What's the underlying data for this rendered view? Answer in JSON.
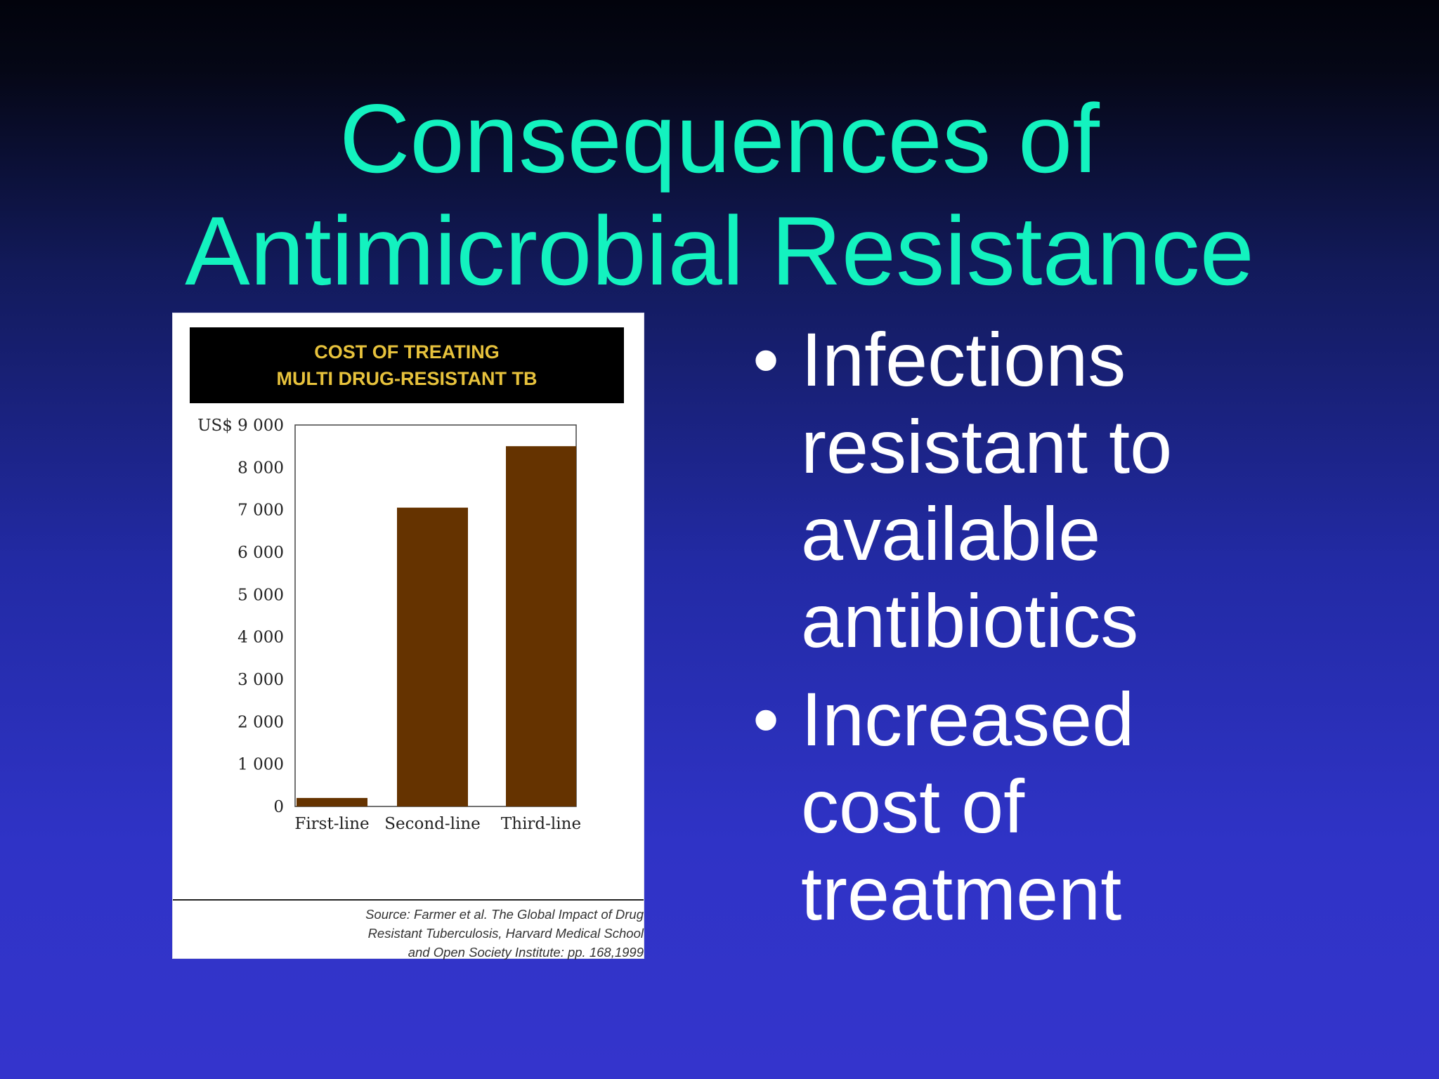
{
  "slide": {
    "title_lines": [
      "Consequences of",
      "Antimicrobial Resistance"
    ],
    "bullets": [
      {
        "lines": [
          "Infections",
          "resistant to",
          "available",
          "antibiotics"
        ]
      },
      {
        "lines": [
          "Increased",
          "cost of",
          "treatment"
        ]
      }
    ],
    "bullet_symbol": "•"
  },
  "panel": {
    "header_lines": [
      "COST OF TREATING",
      "MULTI DRUG-RESISTANT TB"
    ],
    "source_lines": [
      "Source: Farmer et al. The Global Impact of Drug",
      "Resistant Tuberculosis, Harvard Medical School",
      "and Open Society Institute: pp. 168,1999"
    ]
  },
  "chart_data": {
    "type": "bar",
    "title": "COST OF TREATING MULTI DRUG-RESISTANT TB",
    "categories": [
      "First-line",
      "Second-line",
      "Third-line"
    ],
    "values": [
      200,
      7050,
      8500
    ],
    "ylim": [
      0,
      9000
    ],
    "yticks": [
      {
        "value": 0,
        "label": "0"
      },
      {
        "value": 1000,
        "label": "1 000"
      },
      {
        "value": 2000,
        "label": "2 000"
      },
      {
        "value": 3000,
        "label": "3 000"
      },
      {
        "value": 4000,
        "label": "4 000"
      },
      {
        "value": 5000,
        "label": "5 000"
      },
      {
        "value": 6000,
        "label": "6 000"
      },
      {
        "value": 7000,
        "label": "7 000"
      },
      {
        "value": 8000,
        "label": "8 000"
      },
      {
        "value": 9000,
        "label": "US$ 9 000"
      }
    ],
    "bar_color": "#653300",
    "grid": false,
    "legend": "none"
  }
}
